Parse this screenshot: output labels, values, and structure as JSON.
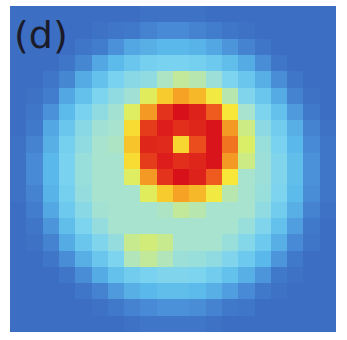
{
  "chart_data": {
    "type": "heatmap",
    "title": "(d)",
    "tick_labels": false,
    "values": [
      [
        0,
        0,
        0,
        0,
        0,
        0,
        0,
        0,
        1,
        1,
        1,
        1,
        0,
        0,
        0,
        0,
        0,
        0,
        0,
        0
      ],
      [
        0,
        0,
        0,
        0,
        0,
        1,
        2,
        3,
        6,
        8,
        8,
        6,
        4,
        2,
        1,
        0,
        0,
        0,
        0,
        0
      ],
      [
        0,
        0,
        0,
        0,
        2,
        4,
        10,
        15,
        17,
        19,
        19,
        18,
        15,
        11,
        6,
        2,
        0,
        0,
        0,
        0
      ],
      [
        0,
        0,
        0,
        2,
        7,
        15,
        20,
        24,
        27,
        28,
        28,
        27,
        25,
        21,
        16,
        9,
        2,
        0,
        0,
        0
      ],
      [
        0,
        0,
        2,
        7,
        16,
        22,
        28,
        32,
        34,
        41,
        45,
        43,
        37,
        29,
        24,
        17,
        9,
        2,
        0,
        0
      ],
      [
        0,
        1,
        4,
        15,
        22,
        29,
        34,
        38,
        52,
        64,
        70,
        67,
        57,
        43,
        30,
        24,
        16,
        6,
        1,
        0
      ],
      [
        0,
        2,
        10,
        20,
        28,
        34,
        39,
        51,
        71,
        87,
        95,
        91,
        78,
        59,
        40,
        29,
        22,
        12,
        3,
        0
      ],
      [
        0,
        3,
        15,
        24,
        32,
        38,
        40,
        61,
        85,
        92,
        88,
        90,
        94,
        71,
        47,
        33,
        26,
        17,
        6,
        1
      ],
      [
        1,
        6,
        17,
        27,
        34,
        40,
        41,
        65,
        90,
        89,
        62,
        81,
        94,
        75,
        50,
        36,
        28,
        19,
        8,
        2
      ],
      [
        1,
        8,
        19,
        28,
        36,
        40,
        40,
        61,
        85,
        92,
        88,
        90,
        94,
        71,
        47,
        37,
        30,
        21,
        10,
        2
      ],
      [
        1,
        8,
        19,
        28,
        36,
        40,
        40,
        51,
        71,
        87,
        95,
        91,
        78,
        59,
        40,
        37,
        30,
        21,
        10,
        2
      ],
      [
        1,
        6,
        18,
        27,
        35,
        40,
        40,
        40,
        52,
        64,
        70,
        67,
        57,
        43,
        40,
        36,
        29,
        20,
        9,
        2
      ],
      [
        0,
        4,
        15,
        25,
        32,
        39,
        40,
        40,
        40,
        41,
        45,
        43,
        40,
        40,
        40,
        34,
        26,
        17,
        6,
        1
      ],
      [
        0,
        2,
        11,
        21,
        29,
        35,
        40,
        40,
        40,
        40,
        40,
        40,
        40,
        40,
        36,
        30,
        22,
        13,
        3,
        0
      ],
      [
        0,
        1,
        6,
        16,
        24,
        30,
        35,
        46,
        48,
        46,
        40,
        40,
        40,
        36,
        31,
        25,
        17,
        8,
        2,
        0
      ],
      [
        0,
        0,
        2,
        9,
        17,
        24,
        29,
        42,
        45,
        42,
        37,
        36,
        34,
        30,
        25,
        19,
        11,
        3,
        0,
        0
      ],
      [
        0,
        0,
        0,
        2,
        9,
        16,
        22,
        26,
        28,
        30,
        30,
        29,
        26,
        22,
        17,
        11,
        3,
        1,
        0,
        0
      ],
      [
        0,
        0,
        0,
        0,
        2,
        6,
        12,
        17,
        19,
        21,
        21,
        20,
        17,
        13,
        8,
        3,
        1,
        0,
        0,
        0
      ],
      [
        0,
        0,
        0,
        0,
        0,
        1,
        3,
        6,
        8,
        10,
        10,
        9,
        6,
        3,
        2,
        0,
        0,
        0,
        0,
        0
      ],
      [
        0,
        0,
        0,
        0,
        0,
        0,
        0,
        1,
        2,
        2,
        2,
        2,
        1,
        0,
        0,
        0,
        0,
        0,
        0,
        0
      ]
    ]
  }
}
